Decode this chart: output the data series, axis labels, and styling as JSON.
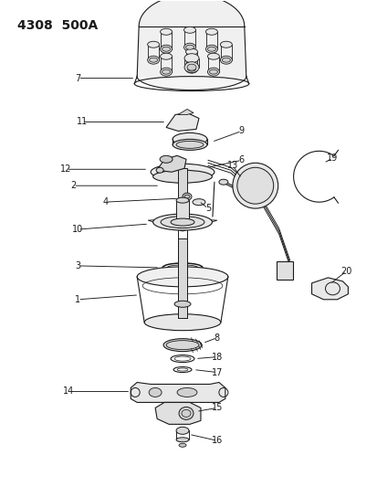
{
  "title": "4308  500A",
  "bg_color": "#ffffff",
  "lc": "#1a1a1a",
  "title_fontsize": 10,
  "label_fontsize": 7,
  "fig_width": 4.14,
  "fig_height": 5.33,
  "fig_dpi": 100
}
